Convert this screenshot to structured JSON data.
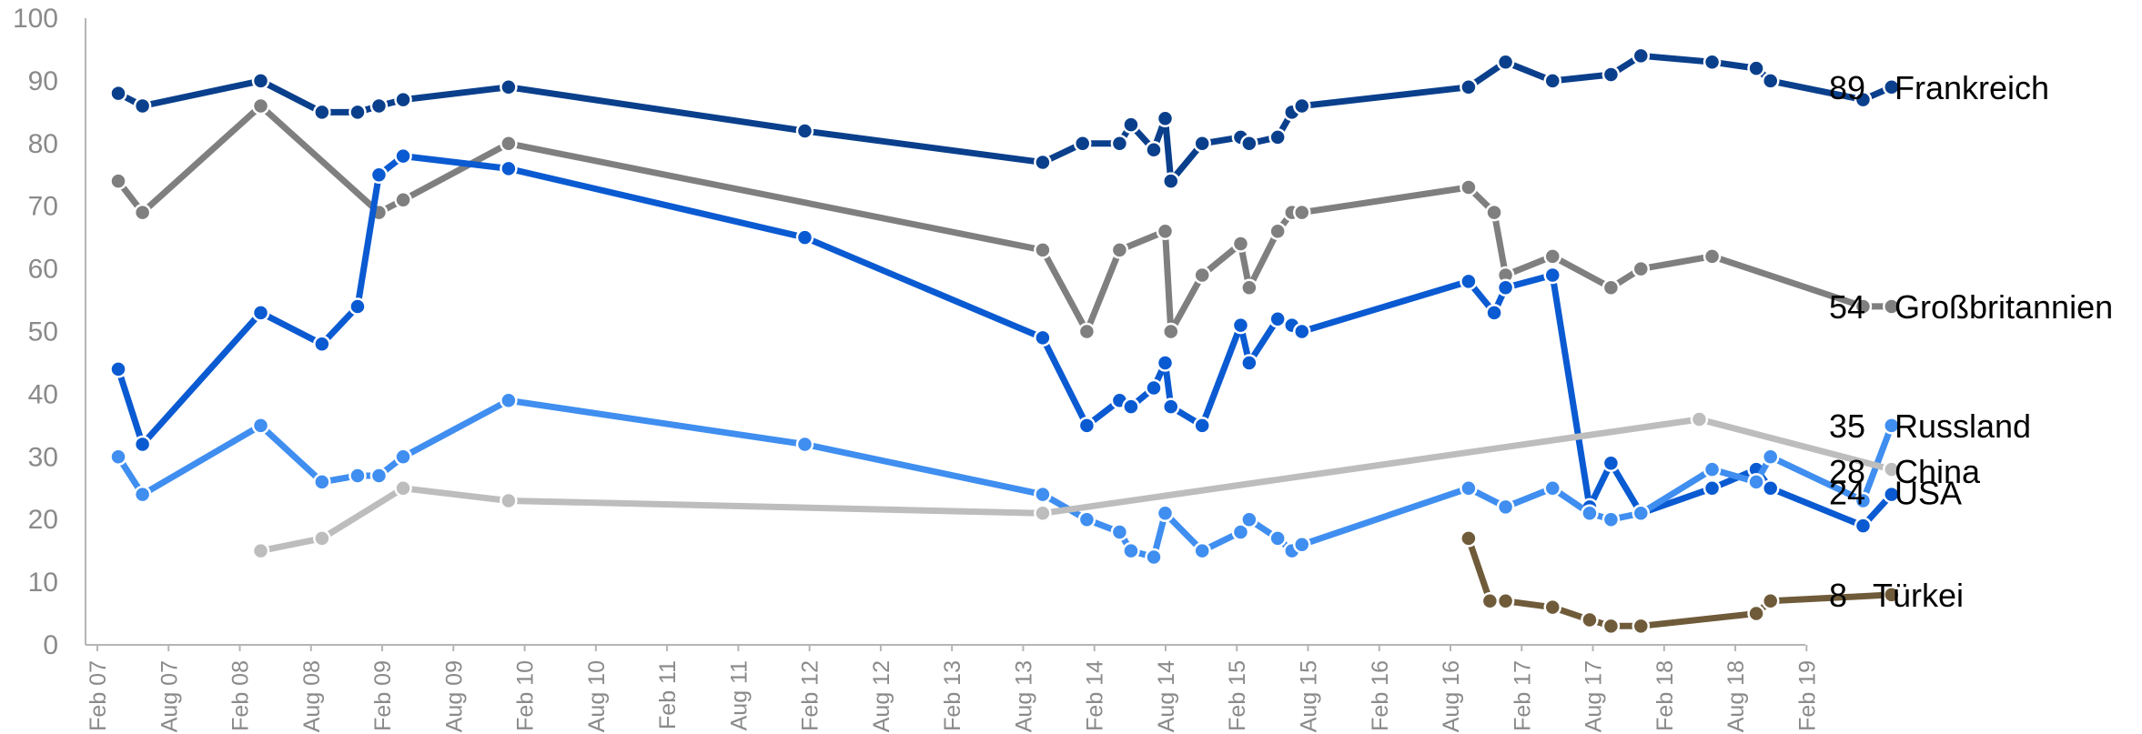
{
  "chart_data": {
    "type": "line",
    "title": "",
    "xlabel": "",
    "ylabel": "",
    "ylim": [
      0,
      100
    ],
    "xlim": [
      2007.0,
      2019.1
    ],
    "grid": false,
    "legend": "end-labels",
    "y_ticks": [
      0,
      10,
      20,
      30,
      40,
      50,
      60,
      70,
      80,
      90,
      100
    ],
    "x_ticks": [
      {
        "label": "Feb 07",
        "x": 2007.083
      },
      {
        "label": "Aug 07",
        "x": 2007.583
      },
      {
        "label": "Feb 08",
        "x": 2008.083
      },
      {
        "label": "Aug 08",
        "x": 2008.583
      },
      {
        "label": "Feb 09",
        "x": 2009.083
      },
      {
        "label": "Aug 09",
        "x": 2009.583
      },
      {
        "label": "Feb 10",
        "x": 2010.083
      },
      {
        "label": "Aug 10",
        "x": 2010.583
      },
      {
        "label": "Feb 11",
        "x": 2011.083
      },
      {
        "label": "Aug 11",
        "x": 2011.583
      },
      {
        "label": "Feb 12",
        "x": 2012.083
      },
      {
        "label": "Aug 12",
        "x": 2012.583
      },
      {
        "label": "Feb 13",
        "x": 2013.083
      },
      {
        "label": "Aug 13",
        "x": 2013.583
      },
      {
        "label": "Feb 14",
        "x": 2014.083
      },
      {
        "label": "Aug 14",
        "x": 2014.583
      },
      {
        "label": "Feb 15",
        "x": 2015.083
      },
      {
        "label": "Aug 15",
        "x": 2015.583
      },
      {
        "label": "Feb 16",
        "x": 2016.083
      },
      {
        "label": "Aug 16",
        "x": 2016.583
      },
      {
        "label": "Feb 17",
        "x": 2017.083
      },
      {
        "label": "Aug 17",
        "x": 2017.583
      },
      {
        "label": "Feb 18",
        "x": 2018.083
      },
      {
        "label": "Aug 18",
        "x": 2018.583
      },
      {
        "label": "Feb 19",
        "x": 2019.083
      }
    ],
    "series": [
      {
        "name": "Frankreich",
        "end_value": "89",
        "color": "#0a3f8c",
        "points": [
          [
            2007.23,
            88
          ],
          [
            2007.4,
            86
          ],
          [
            2008.23,
            90
          ],
          [
            2008.66,
            85
          ],
          [
            2008.91,
            85
          ],
          [
            2009.06,
            86
          ],
          [
            2009.23,
            87
          ],
          [
            2009.97,
            89
          ],
          [
            2012.05,
            82
          ],
          [
            2013.72,
            77
          ],
          [
            2014.0,
            80
          ],
          [
            2014.26,
            80
          ],
          [
            2014.34,
            83
          ],
          [
            2014.5,
            79
          ],
          [
            2014.58,
            84
          ],
          [
            2014.62,
            74
          ],
          [
            2014.84,
            80
          ],
          [
            2015.11,
            81
          ],
          [
            2015.17,
            80
          ],
          [
            2015.37,
            81
          ],
          [
            2015.47,
            85
          ],
          [
            2015.54,
            86
          ],
          [
            2016.71,
            89
          ],
          [
            2016.97,
            93
          ],
          [
            2017.3,
            90
          ],
          [
            2017.71,
            91
          ],
          [
            2017.92,
            94
          ],
          [
            2018.42,
            93
          ],
          [
            2018.73,
            92
          ],
          [
            2018.83,
            90
          ],
          [
            2019.48,
            87
          ],
          [
            2019.68,
            89
          ]
        ]
      },
      {
        "name": "Großbritannien",
        "end_value": "54",
        "color": "#7f7f7f",
        "points": [
          [
            2007.23,
            74
          ],
          [
            2007.4,
            69
          ],
          [
            2008.23,
            86
          ],
          [
            2009.06,
            69
          ],
          [
            2009.23,
            71
          ],
          [
            2009.97,
            80
          ],
          [
            2013.72,
            63
          ],
          [
            2014.03,
            50
          ],
          [
            2014.26,
            63
          ],
          [
            2014.58,
            66
          ],
          [
            2014.62,
            50
          ],
          [
            2014.84,
            59
          ],
          [
            2015.11,
            64
          ],
          [
            2015.17,
            57
          ],
          [
            2015.37,
            66
          ],
          [
            2015.47,
            69
          ],
          [
            2015.54,
            69
          ],
          [
            2016.71,
            73
          ],
          [
            2016.89,
            69
          ],
          [
            2016.97,
            59
          ],
          [
            2017.3,
            62
          ],
          [
            2017.71,
            57
          ],
          [
            2017.92,
            60
          ],
          [
            2018.42,
            62
          ],
          [
            2019.48,
            54
          ],
          [
            2019.68,
            54
          ]
        ]
      },
      {
        "name": "USA",
        "end_value": "24",
        "color": "#0a5ad2",
        "points": [
          [
            2007.23,
            44
          ],
          [
            2007.4,
            32
          ],
          [
            2008.23,
            53
          ],
          [
            2008.66,
            48
          ],
          [
            2008.91,
            54
          ],
          [
            2009.06,
            75
          ],
          [
            2009.23,
            78
          ],
          [
            2009.97,
            76
          ],
          [
            2012.05,
            65
          ],
          [
            2013.72,
            49
          ],
          [
            2014.03,
            35
          ],
          [
            2014.26,
            39
          ],
          [
            2014.34,
            38
          ],
          [
            2014.5,
            41
          ],
          [
            2014.58,
            45
          ],
          [
            2014.62,
            38
          ],
          [
            2014.84,
            35
          ],
          [
            2015.11,
            51
          ],
          [
            2015.17,
            45
          ],
          [
            2015.37,
            52
          ],
          [
            2015.47,
            51
          ],
          [
            2015.54,
            50
          ],
          [
            2016.71,
            58
          ],
          [
            2016.89,
            53
          ],
          [
            2016.97,
            57
          ],
          [
            2017.3,
            59
          ],
          [
            2017.56,
            22
          ],
          [
            2017.71,
            29
          ],
          [
            2017.92,
            21
          ],
          [
            2018.42,
            25
          ],
          [
            2018.73,
            28
          ],
          [
            2018.83,
            25
          ],
          [
            2019.48,
            19
          ],
          [
            2019.68,
            24
          ]
        ]
      },
      {
        "name": "Russland",
        "end_value": "35",
        "color": "#3f8ef0",
        "points": [
          [
            2007.23,
            30
          ],
          [
            2007.4,
            24
          ],
          [
            2008.23,
            35
          ],
          [
            2008.66,
            26
          ],
          [
            2008.91,
            27
          ],
          [
            2009.06,
            27
          ],
          [
            2009.23,
            30
          ],
          [
            2009.97,
            39
          ],
          [
            2012.05,
            32
          ],
          [
            2013.72,
            24
          ],
          [
            2014.03,
            20
          ],
          [
            2014.26,
            18
          ],
          [
            2014.34,
            15
          ],
          [
            2014.5,
            14
          ],
          [
            2014.58,
            21
          ],
          [
            2014.84,
            15
          ],
          [
            2015.11,
            18
          ],
          [
            2015.17,
            20
          ],
          [
            2015.37,
            17
          ],
          [
            2015.47,
            15
          ],
          [
            2015.54,
            16
          ],
          [
            2016.71,
            25
          ],
          [
            2016.97,
            22
          ],
          [
            2017.3,
            25
          ],
          [
            2017.56,
            21
          ],
          [
            2017.71,
            20
          ],
          [
            2017.92,
            21
          ],
          [
            2018.42,
            28
          ],
          [
            2018.73,
            26
          ],
          [
            2018.83,
            30
          ],
          [
            2019.48,
            23
          ],
          [
            2019.68,
            35
          ]
        ]
      },
      {
        "name": "China",
        "end_value": "28",
        "color": "#bdbdbd",
        "points": [
          [
            2008.23,
            15
          ],
          [
            2008.66,
            17
          ],
          [
            2009.23,
            25
          ],
          [
            2009.97,
            23
          ],
          [
            2013.72,
            21
          ],
          [
            2018.33,
            36
          ],
          [
            2019.68,
            28
          ]
        ]
      },
      {
        "name": "Türkei",
        "end_value": "8",
        "color": "#6f5b3a",
        "points": [
          [
            2016.71,
            17
          ],
          [
            2016.86,
            7
          ],
          [
            2016.97,
            7
          ],
          [
            2017.3,
            6
          ],
          [
            2017.56,
            4
          ],
          [
            2017.71,
            3
          ],
          [
            2017.92,
            3
          ],
          [
            2018.73,
            5
          ],
          [
            2018.83,
            7
          ],
          [
            2019.68,
            8
          ]
        ]
      }
    ]
  }
}
